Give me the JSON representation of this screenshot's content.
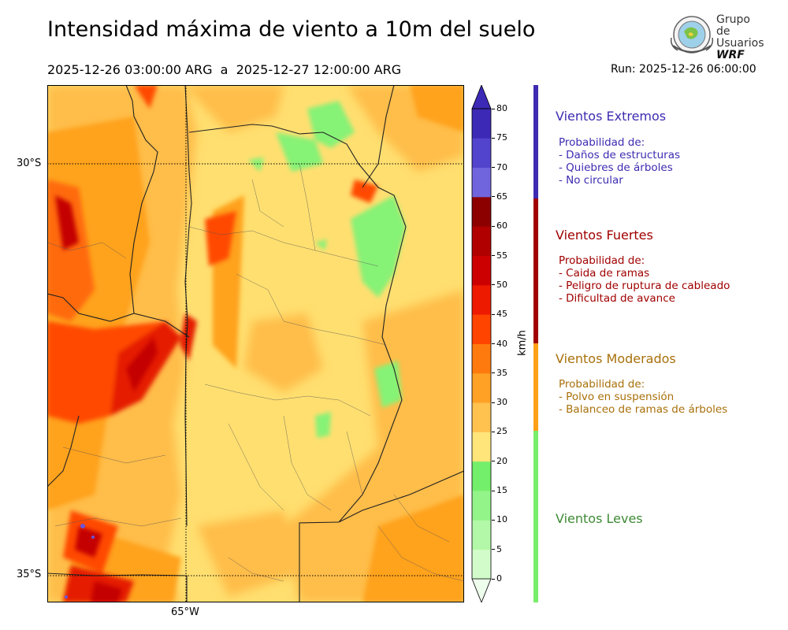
{
  "header": {
    "title": "Intensidad máxima de viento a 10m del suelo",
    "period": "2025-12-26 03:00:00 ARG  a  2025-12-27 12:00:00 ARG",
    "run": "Run: 2025-12-26 06:00:00"
  },
  "logo": {
    "line1": "Grupo de",
    "line2": "Usuarios",
    "line3": "WRF",
    "icon": "globe-seal-icon"
  },
  "map": {
    "lat_ticks": [
      "30°S",
      "35°S"
    ],
    "lon_ticks": [
      "65°W"
    ],
    "gridlines": true
  },
  "colorbar": {
    "units": "km/h",
    "ticks": [
      "0",
      "5",
      "10",
      "15",
      "20",
      "25",
      "30",
      "35",
      "40",
      "45",
      "50",
      "55",
      "60",
      "65",
      "70",
      "75",
      "80"
    ],
    "colors": [
      "#eefeec",
      "#d2fcca",
      "#b2f8a8",
      "#93f489",
      "#74ef6b",
      "#ffe57a",
      "#ffc24f",
      "#ffa125",
      "#ff7a0e",
      "#ff4400",
      "#ee1a00",
      "#cc0000",
      "#b00000",
      "#8c0000",
      "#7065dd",
      "#5244cc",
      "#3c29b5"
    ]
  },
  "categories": [
    {
      "title": "Vientos Extremos",
      "color": "#3d2bb1",
      "lines": [
        "Probabilidad de:",
        "- Daños de estructuras",
        "- Quiebres de árboles",
        "- No circular"
      ]
    },
    {
      "title": "Vientos Fuertes",
      "color": "#a00000",
      "lines": [
        "Probabilidad de:",
        "- Caida de ramas",
        "- Peligro de ruptura de cableado",
        "- Dificultad de avance"
      ]
    },
    {
      "title": "Vientos Moderados",
      "color": "#a8700a",
      "bar_color": "#ffa016",
      "lines": [
        "Probabilidad de:",
        "- Polvo en suspensión",
        "- Balanceo de ramas de árboles"
      ]
    },
    {
      "title": "Vientos Leves",
      "color": "#3e8a35",
      "bar_color": "#78ee6c",
      "lines": []
    }
  ]
}
